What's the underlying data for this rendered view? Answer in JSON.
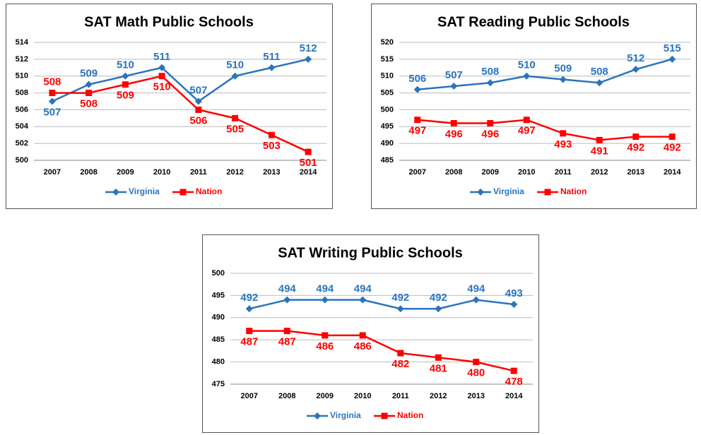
{
  "chart_data": [
    {
      "type": "line",
      "title": "SAT Math Public Schools",
      "categories": [
        "2007",
        "2008",
        "2009",
        "2010",
        "2011",
        "2012",
        "2013",
        "2014"
      ],
      "series": [
        {
          "name": "Virginia",
          "color": "#2a74bd",
          "values": [
            507,
            509,
            510,
            511,
            507,
            510,
            511,
            512
          ]
        },
        {
          "name": "Nation",
          "color": "#ff0000",
          "values": [
            508,
            508,
            509,
            510,
            506,
            505,
            503,
            501
          ]
        }
      ],
      "ylim": [
        500,
        514
      ],
      "yticks": [
        500,
        502,
        504,
        506,
        508,
        510,
        512,
        514
      ],
      "grid": true,
      "legend": "bottom"
    },
    {
      "type": "line",
      "title": "SAT Reading Public Schools",
      "categories": [
        "2007",
        "2008",
        "2009",
        "2010",
        "2011",
        "2012",
        "2013",
        "2014"
      ],
      "series": [
        {
          "name": "Virginia",
          "color": "#2a74bd",
          "values": [
            506,
            507,
            508,
            510,
            509,
            508,
            512,
            515
          ]
        },
        {
          "name": "Nation",
          "color": "#ff0000",
          "values": [
            497,
            496,
            496,
            497,
            493,
            491,
            492,
            492
          ]
        }
      ],
      "ylim": [
        485,
        520
      ],
      "yticks": [
        485,
        490,
        495,
        500,
        505,
        510,
        515,
        520
      ],
      "grid": true,
      "legend": "bottom"
    },
    {
      "type": "line",
      "title": "SAT Writing Public Schools",
      "categories": [
        "2007",
        "2008",
        "2009",
        "2010",
        "2011",
        "2012",
        "2013",
        "2014"
      ],
      "series": [
        {
          "name": "Virginia",
          "color": "#2a74bd",
          "values": [
            492,
            494,
            494,
            494,
            492,
            492,
            494,
            493
          ]
        },
        {
          "name": "Nation",
          "color": "#ff0000",
          "values": [
            487,
            487,
            486,
            486,
            482,
            481,
            480,
            478
          ]
        }
      ],
      "ylim": [
        475,
        500
      ],
      "yticks": [
        475,
        480,
        485,
        490,
        495,
        500
      ],
      "grid": true,
      "legend": "bottom"
    }
  ]
}
